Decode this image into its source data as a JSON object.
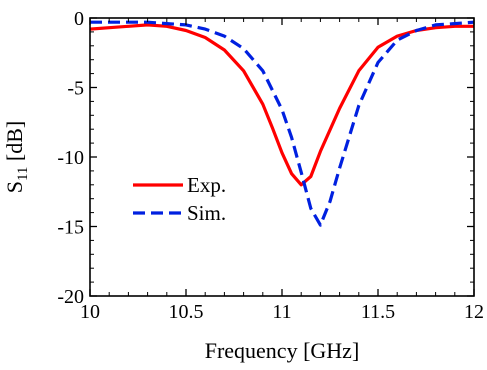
{
  "chart_data": {
    "type": "line",
    "xlabel": "Frequency [GHz]",
    "ylabel": "S11 [dB]",
    "ylabel_main": "S",
    "ylabel_sub": "11",
    "ylabel_rest": " [dB]",
    "xlim": [
      10,
      12
    ],
    "ylim": [
      -20,
      0
    ],
    "x_ticks": [
      10,
      10.5,
      11,
      11.5,
      12
    ],
    "x_tick_labels": [
      "10",
      "10.5",
      "11",
      "11.5",
      "12"
    ],
    "y_ticks": [
      0,
      -5,
      -10,
      -15,
      -20
    ],
    "y_tick_labels": [
      "0",
      "-5",
      "-10",
      "-15",
      "-20"
    ],
    "grid": false,
    "legend_position": "center-left",
    "series": [
      {
        "name": "Exp.",
        "color": "#ff0000",
        "style": "solid",
        "x": [
          10,
          10.1,
          10.2,
          10.3,
          10.4,
          10.5,
          10.6,
          10.7,
          10.8,
          10.9,
          10.95,
          11.0,
          11.05,
          11.1,
          11.15,
          11.2,
          11.3,
          11.4,
          11.5,
          11.6,
          11.7,
          11.8,
          11.9,
          12
        ],
        "y": [
          -0.8,
          -0.7,
          -0.6,
          -0.5,
          -0.6,
          -0.9,
          -1.4,
          -2.3,
          -3.8,
          -6.2,
          -7.9,
          -9.7,
          -11.2,
          -12.0,
          -11.4,
          -9.6,
          -6.5,
          -3.8,
          -2.1,
          -1.3,
          -0.9,
          -0.7,
          -0.6,
          -0.6
        ]
      },
      {
        "name": "Sim.",
        "color": "#0020e0",
        "style": "dashed",
        "x": [
          10,
          10.1,
          10.2,
          10.3,
          10.4,
          10.5,
          10.6,
          10.7,
          10.8,
          10.9,
          11.0,
          11.05,
          11.1,
          11.15,
          11.2,
          11.25,
          11.3,
          11.4,
          11.5,
          11.6,
          11.7,
          11.8,
          11.9,
          12
        ],
        "y": [
          -0.3,
          -0.3,
          -0.3,
          -0.3,
          -0.4,
          -0.5,
          -0.8,
          -1.3,
          -2.2,
          -3.8,
          -6.6,
          -8.6,
          -11.1,
          -13.7,
          -14.9,
          -13.2,
          -10.8,
          -6.3,
          -3.2,
          -1.6,
          -0.9,
          -0.5,
          -0.4,
          -0.3
        ]
      }
    ]
  }
}
